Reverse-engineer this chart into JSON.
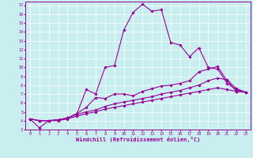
{
  "xlabel": "Windchill (Refroidissement éolien,°C)",
  "xlim": [
    -0.5,
    23.5
  ],
  "ylim": [
    3,
    17.4
  ],
  "xticks": [
    0,
    1,
    2,
    3,
    4,
    5,
    6,
    7,
    8,
    9,
    10,
    11,
    12,
    13,
    14,
    15,
    16,
    17,
    18,
    19,
    20,
    21,
    22,
    23
  ],
  "yticks": [
    3,
    4,
    5,
    6,
    7,
    8,
    9,
    10,
    11,
    12,
    13,
    14,
    15,
    16,
    17
  ],
  "bg_color": "#c8eef0",
  "line_color": "#990099",
  "grid_color": "#ffffff",
  "series": [
    [
      4.2,
      3.2,
      4.0,
      4.1,
      4.3,
      4.8,
      7.5,
      7.0,
      10.0,
      10.2,
      14.2,
      16.2,
      17.1,
      16.3,
      16.5,
      12.8,
      12.5,
      11.2,
      12.2,
      10.0,
      9.8,
      8.2,
      7.5,
      7.2
    ],
    [
      4.2,
      4.0,
      4.0,
      4.1,
      4.3,
      4.8,
      5.5,
      6.6,
      6.5,
      7.0,
      7.0,
      6.8,
      7.3,
      7.6,
      7.9,
      8.0,
      8.2,
      8.5,
      9.5,
      9.8,
      10.1,
      8.5,
      7.3,
      7.2
    ],
    [
      4.2,
      4.0,
      4.0,
      4.1,
      4.3,
      4.7,
      5.0,
      5.2,
      5.6,
      5.9,
      6.1,
      6.3,
      6.5,
      6.7,
      7.0,
      7.2,
      7.4,
      7.7,
      8.0,
      8.5,
      8.8,
      8.6,
      7.6,
      7.2
    ],
    [
      4.2,
      4.0,
      4.0,
      4.0,
      4.2,
      4.5,
      4.8,
      5.0,
      5.3,
      5.5,
      5.7,
      5.9,
      6.1,
      6.3,
      6.5,
      6.7,
      6.9,
      7.1,
      7.3,
      7.5,
      7.7,
      7.5,
      7.3,
      7.2
    ]
  ]
}
